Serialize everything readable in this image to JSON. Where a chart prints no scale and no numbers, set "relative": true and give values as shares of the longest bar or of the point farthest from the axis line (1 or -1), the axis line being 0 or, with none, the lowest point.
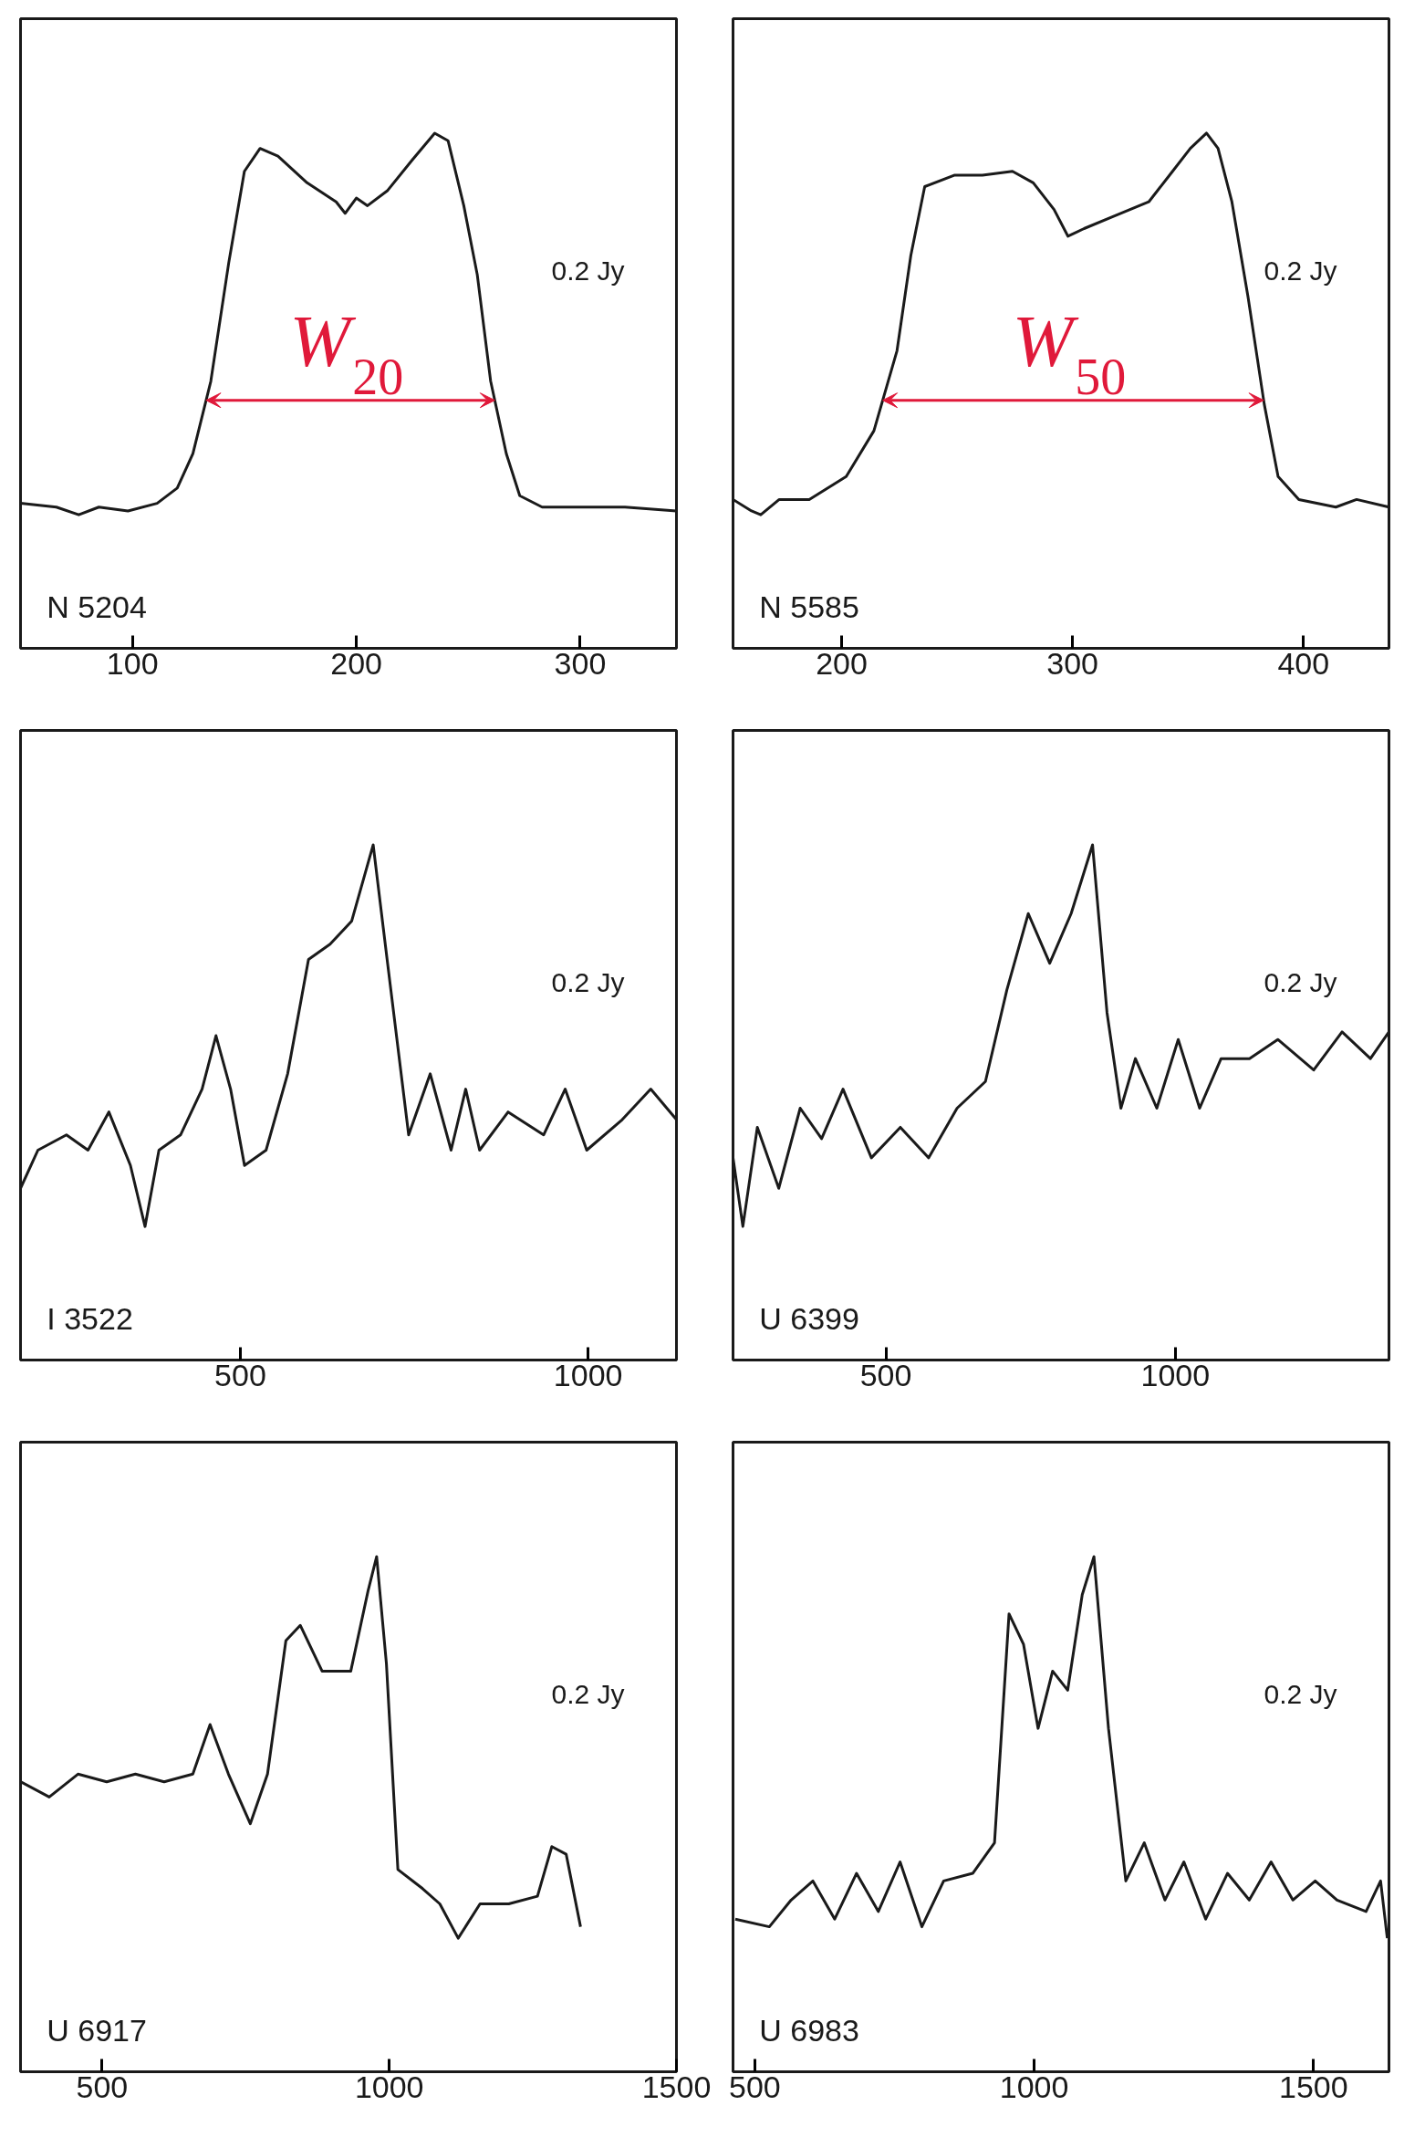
{
  "chart_data": [
    {
      "type": "line",
      "relative": true,
      "color": "#1a1a1a",
      "xlim": [
        50,
        343
      ],
      "xticks": [
        100,
        200,
        300
      ],
      "grid": false,
      "marker": "none",
      "line_style": "solid",
      "x": [
        50,
        66,
        76,
        85,
        98,
        111,
        120,
        127,
        135,
        143,
        150,
        157,
        165,
        178,
        191,
        195,
        200,
        205,
        214,
        225,
        235,
        241,
        248,
        254,
        260,
        267,
        273,
        283,
        300,
        320,
        343
      ],
      "values": [
        0.03,
        0.02,
        0,
        0.02,
        0.01,
        0.03,
        0.07,
        0.16,
        0.35,
        0.66,
        0.9,
        0.96,
        0.94,
        0.87,
        0.82,
        0.79,
        0.83,
        0.81,
        0.85,
        0.93,
        1.0,
        0.98,
        0.81,
        0.63,
        0.35,
        0.16,
        0.05,
        0.02,
        0.02,
        0.02,
        0.01
      ],
      "annotations": [
        "N 5204",
        "0.2 Jy",
        "W$_{20}$"
      ]
    },
    {
      "type": "line",
      "relative": true,
      "color": "#1a1a1a",
      "xlim": [
        153,
        437
      ],
      "xticks": [
        200,
        300,
        400
      ],
      "grid": false,
      "marker": "none",
      "line_style": "solid",
      "x": [
        153,
        161,
        165,
        173,
        186,
        202,
        214,
        224,
        230,
        236,
        249,
        261,
        274,
        283,
        292,
        298,
        305,
        317,
        333,
        342,
        351,
        358,
        363,
        369,
        376,
        383,
        389,
        398,
        414,
        423,
        437
      ],
      "values": [
        0.04,
        0.01,
        0,
        0.04,
        0.04,
        0.1,
        0.22,
        0.43,
        0.68,
        0.86,
        0.89,
        0.89,
        0.9,
        0.87,
        0.8,
        0.73,
        0.75,
        0.78,
        0.82,
        0.89,
        0.96,
        1.0,
        0.96,
        0.82,
        0.57,
        0.29,
        0.1,
        0.04,
        0.02,
        0.04,
        0.02
      ],
      "annotations": [
        "N 5585",
        "0.2 Jy",
        "W$_{50}$"
      ]
    },
    {
      "type": "line",
      "relative": true,
      "color": "#1a1a1a",
      "xlim": [
        184,
        1127
      ],
      "xticks": [
        500,
        1000
      ],
      "grid": false,
      "marker": "none",
      "line_style": "solid",
      "x": [
        184,
        209,
        250,
        281,
        311,
        342,
        363,
        383,
        414,
        445,
        465,
        486,
        506,
        537,
        568,
        598,
        629,
        660,
        691,
        711,
        742,
        773,
        803,
        824,
        844,
        885,
        936,
        967,
        998,
        1049,
        1090,
        1127
      ],
      "values": [
        0.1,
        0.2,
        0.24,
        0.2,
        0.3,
        0.16,
        0,
        0.2,
        0.24,
        0.36,
        0.5,
        0.36,
        0.16,
        0.2,
        0.4,
        0.7,
        0.74,
        0.8,
        1.0,
        0.7,
        0.24,
        0.4,
        0.2,
        0.36,
        0.2,
        0.3,
        0.24,
        0.36,
        0.2,
        0.28,
        0.36,
        0.28
      ],
      "annotations": [
        "I 3522",
        "0.2 Jy"
      ]
    },
    {
      "type": "line",
      "relative": true,
      "color": "#1a1a1a",
      "xlim": [
        236,
        1369
      ],
      "xticks": [
        500,
        1000
      ],
      "grid": false,
      "marker": "none",
      "line_style": "solid",
      "x": [
        236,
        253,
        278,
        315,
        352,
        389,
        426,
        475,
        525,
        574,
        623,
        672,
        709,
        746,
        783,
        820,
        857,
        882,
        906,
        931,
        968,
        1005,
        1042,
        1079,
        1128,
        1177,
        1239,
        1288,
        1337,
        1369
      ],
      "values": [
        0.18,
        0,
        0.26,
        0.1,
        0.31,
        0.23,
        0.36,
        0.18,
        0.26,
        0.18,
        0.31,
        0.38,
        0.62,
        0.82,
        0.69,
        0.82,
        1.0,
        0.56,
        0.31,
        0.44,
        0.31,
        0.49,
        0.31,
        0.44,
        0.44,
        0.49,
        0.41,
        0.51,
        0.44,
        0.51
      ],
      "annotations": [
        "U 6399",
        "0.2 Jy"
      ]
    },
    {
      "type": "line",
      "relative": true,
      "color": "#1a1a1a",
      "xlim": [
        358,
        1500
      ],
      "xticks": [
        500,
        1000,
        1500
      ],
      "grid": false,
      "marker": "none",
      "line_style": "solid",
      "x": [
        358,
        408,
        458,
        508,
        558,
        608,
        658,
        688,
        720,
        758,
        788,
        820,
        845,
        883,
        933,
        963,
        978,
        995,
        1015,
        1058,
        1088,
        1120,
        1158,
        1208,
        1258,
        1283,
        1308,
        1333
      ],
      "values": [
        0.41,
        0.37,
        0.43,
        0.41,
        0.43,
        0.41,
        0.43,
        0.56,
        0.43,
        0.3,
        0.43,
        0.78,
        0.82,
        0.7,
        0.7,
        0.91,
        1.0,
        0.72,
        0.18,
        0.13,
        0.09,
        0,
        0.09,
        0.09,
        0.11,
        0.24,
        0.22,
        0.03
      ],
      "annotations": [
        "U 6917",
        "0.2 Jy"
      ]
    },
    {
      "type": "line",
      "relative": true,
      "color": "#1a1a1a",
      "xlim": [
        461,
        1635
      ],
      "xticks": [
        500,
        1000,
        1500
      ],
      "grid": false,
      "marker": "none",
      "line_style": "solid",
      "x": [
        465,
        526,
        565,
        604,
        643,
        682,
        721,
        760,
        799,
        838,
        890,
        929,
        955,
        981,
        1007,
        1033,
        1060,
        1086,
        1107,
        1133,
        1164,
        1197,
        1234,
        1268,
        1307,
        1346,
        1385,
        1424,
        1463,
        1503,
        1542,
        1594,
        1620,
        1632
      ],
      "values": [
        0.05,
        0.03,
        0.1,
        0.15,
        0.05,
        0.17,
        0.07,
        0.2,
        0.03,
        0.15,
        0.17,
        0.25,
        0.85,
        0.77,
        0.55,
        0.7,
        0.65,
        0.9,
        1.0,
        0.55,
        0.15,
        0.25,
        0.1,
        0.2,
        0.05,
        0.17,
        0.1,
        0.2,
        0.1,
        0.15,
        0.1,
        0.07,
        0.15,
        0
      ],
      "annotations": [
        "U 6983",
        "0.2 Jy"
      ]
    }
  ]
}
